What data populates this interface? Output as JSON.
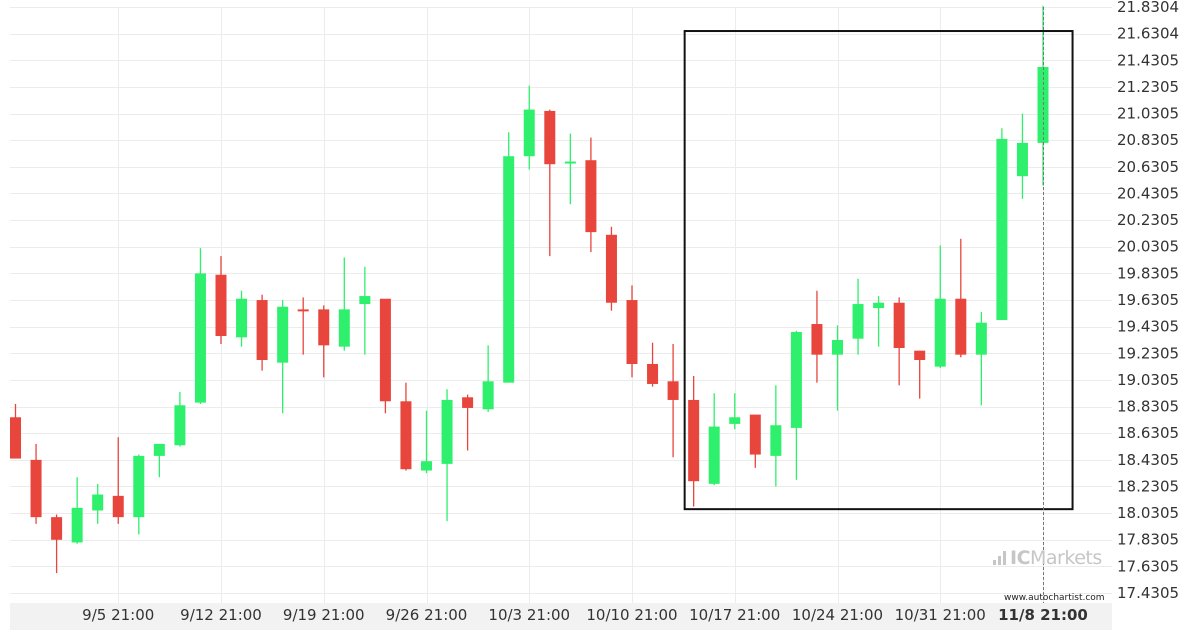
{
  "chart_data": {
    "type": "candlestick",
    "x_ticks": [
      "9/5 21:00",
      "9/12 21:00",
      "9/19 21:00",
      "9/26 21:00",
      "10/3 21:00",
      "10/10 21:00",
      "10/17 21:00",
      "10/24 21:00",
      "10/31 21:00",
      "11/8 21:00"
    ],
    "x_tick_candle_index": [
      5,
      10,
      15,
      20,
      25,
      30,
      35,
      40,
      45,
      50
    ],
    "y_ticks": [
      "21.8304",
      "21.6304",
      "21.4305",
      "21.2305",
      "21.0305",
      "20.8305",
      "20.6305",
      "20.4305",
      "20.2305",
      "20.0305",
      "19.8305",
      "19.6305",
      "19.4305",
      "19.2305",
      "19.0305",
      "18.8305",
      "18.6305",
      "18.4305",
      "18.2305",
      "18.0305",
      "17.8305",
      "17.6305",
      "17.4305"
    ],
    "ylim": [
      17.4305,
      21.8304
    ],
    "up_color": "#2ef06c",
    "down_color": "#e8453c",
    "candles": [
      {
        "o": 18.75,
        "h": 18.85,
        "l": 18.45,
        "c": 18.44
      },
      {
        "o": 18.43,
        "h": 18.55,
        "l": 17.95,
        "c": 18.0
      },
      {
        "o": 18.0,
        "h": 18.02,
        "l": 17.58,
        "c": 17.83
      },
      {
        "o": 17.81,
        "h": 18.3,
        "l": 17.8,
        "c": 18.07
      },
      {
        "o": 18.05,
        "h": 18.25,
        "l": 17.95,
        "c": 18.17
      },
      {
        "o": 18.16,
        "h": 18.6,
        "l": 17.95,
        "c": 18.0
      },
      {
        "o": 18.0,
        "h": 18.47,
        "l": 17.87,
        "c": 18.46
      },
      {
        "o": 18.46,
        "h": 18.55,
        "l": 18.3,
        "c": 18.55
      },
      {
        "o": 18.54,
        "h": 18.94,
        "l": 18.53,
        "c": 18.84
      },
      {
        "o": 18.86,
        "h": 20.02,
        "l": 18.85,
        "c": 19.83
      },
      {
        "o": 19.82,
        "h": 19.96,
        "l": 19.3,
        "c": 19.36
      },
      {
        "o": 19.35,
        "h": 19.7,
        "l": 19.28,
        "c": 19.64
      },
      {
        "o": 19.63,
        "h": 19.67,
        "l": 19.1,
        "c": 19.18
      },
      {
        "o": 19.16,
        "h": 19.63,
        "l": 18.78,
        "c": 19.58
      },
      {
        "o": 19.56,
        "h": 19.65,
        "l": 19.22,
        "c": 19.55
      },
      {
        "o": 19.56,
        "h": 19.59,
        "l": 19.05,
        "c": 19.29
      },
      {
        "o": 19.28,
        "h": 19.95,
        "l": 19.25,
        "c": 19.56
      },
      {
        "o": 19.6,
        "h": 19.88,
        "l": 19.22,
        "c": 19.66
      },
      {
        "o": 19.64,
        "h": 19.63,
        "l": 18.78,
        "c": 18.87
      },
      {
        "o": 18.87,
        "h": 19.01,
        "l": 18.35,
        "c": 18.36
      },
      {
        "o": 18.35,
        "h": 18.8,
        "l": 18.33,
        "c": 18.42
      },
      {
        "o": 18.4,
        "h": 18.96,
        "l": 17.97,
        "c": 18.88
      },
      {
        "o": 18.9,
        "h": 18.92,
        "l": 18.5,
        "c": 18.82
      },
      {
        "o": 18.81,
        "h": 19.29,
        "l": 18.79,
        "c": 19.02
      },
      {
        "o": 19.01,
        "h": 20.89,
        "l": 19.01,
        "c": 20.71
      },
      {
        "o": 20.71,
        "h": 21.24,
        "l": 20.61,
        "c": 21.06
      },
      {
        "o": 21.05,
        "h": 21.06,
        "l": 19.96,
        "c": 20.65
      },
      {
        "o": 20.67,
        "h": 20.88,
        "l": 20.35,
        "c": 20.67
      },
      {
        "o": 20.68,
        "h": 20.85,
        "l": 19.99,
        "c": 20.14
      },
      {
        "o": 20.12,
        "h": 20.18,
        "l": 19.55,
        "c": 19.61
      },
      {
        "o": 19.63,
        "h": 19.74,
        "l": 19.05,
        "c": 19.15
      },
      {
        "o": 19.15,
        "h": 19.31,
        "l": 18.98,
        "c": 19.0
      },
      {
        "o": 19.02,
        "h": 19.3,
        "l": 18.45,
        "c": 18.88
      },
      {
        "o": 18.88,
        "h": 19.06,
        "l": 18.08,
        "c": 18.27
      },
      {
        "o": 18.25,
        "h": 18.93,
        "l": 18.24,
        "c": 18.68
      },
      {
        "o": 18.7,
        "h": 18.93,
        "l": 18.66,
        "c": 18.75
      },
      {
        "o": 18.77,
        "h": 18.75,
        "l": 18.37,
        "c": 18.47
      },
      {
        "o": 18.46,
        "h": 18.99,
        "l": 18.23,
        "c": 18.69
      },
      {
        "o": 18.67,
        "h": 19.4,
        "l": 18.28,
        "c": 19.39
      },
      {
        "o": 19.45,
        "h": 19.7,
        "l": 19.01,
        "c": 19.22
      },
      {
        "o": 19.22,
        "h": 19.44,
        "l": 18.8,
        "c": 19.33
      },
      {
        "o": 19.34,
        "h": 19.79,
        "l": 19.22,
        "c": 19.6
      },
      {
        "o": 19.57,
        "h": 19.66,
        "l": 19.28,
        "c": 19.61
      },
      {
        "o": 19.61,
        "h": 19.65,
        "l": 18.99,
        "c": 19.27
      },
      {
        "o": 19.25,
        "h": 19.24,
        "l": 18.89,
        "c": 19.18
      },
      {
        "o": 19.13,
        "h": 20.04,
        "l": 19.12,
        "c": 19.64
      },
      {
        "o": 19.64,
        "h": 20.09,
        "l": 19.2,
        "c": 19.22
      },
      {
        "o": 19.22,
        "h": 19.54,
        "l": 18.84,
        "c": 19.46
      },
      {
        "o": 19.48,
        "h": 20.92,
        "l": 19.48,
        "c": 20.84
      },
      {
        "o": 20.56,
        "h": 21.03,
        "l": 20.39,
        "c": 20.81
      },
      {
        "o": 20.81,
        "h": 21.84,
        "l": 20.49,
        "c": 21.38
      }
    ],
    "pattern_box": {
      "start_index": 33,
      "end_index": 51,
      "high": 21.65,
      "low": 18.06
    },
    "last_candle_marker_index": 50,
    "grid": true
  },
  "watermark": {
    "brand": "ICMarkets",
    "prefix": "IC",
    "suffix": "Markets"
  },
  "credit": "www.autochartist.com"
}
